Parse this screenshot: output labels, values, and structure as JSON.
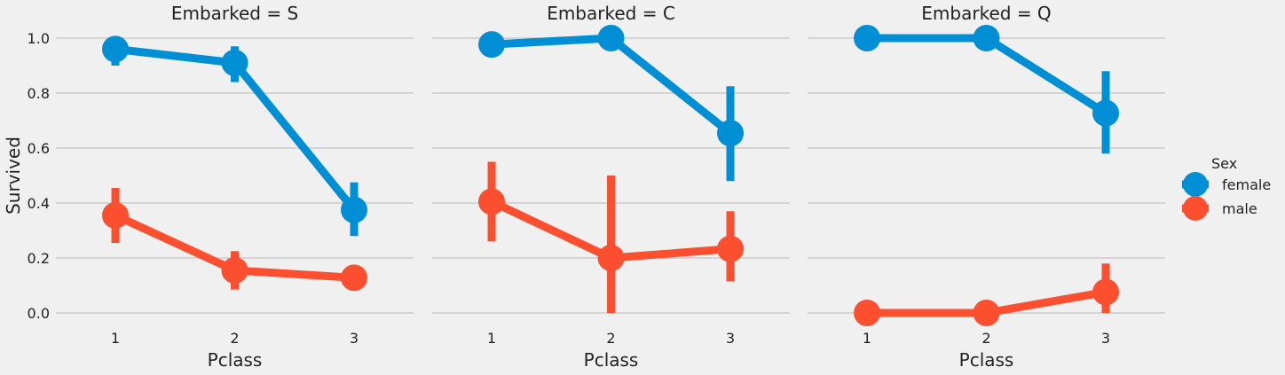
{
  "chart_data": {
    "type": "line",
    "subtype": "pointplot-with-error-bars",
    "x": [
      "1",
      "2",
      "3"
    ],
    "xlabel": "Pclass",
    "ylabel": "Survived",
    "ylim": [
      0.0,
      1.0
    ],
    "yticks": [
      "0.0",
      "0.2",
      "0.4",
      "0.6",
      "0.8",
      "1.0"
    ],
    "grid": "horizontal",
    "legend": {
      "title": "Sex",
      "placement": "right",
      "entries": [
        "female",
        "male"
      ]
    },
    "colors": {
      "female": "#008fd5",
      "male": "#fc4f30",
      "background": "#f0f0f0",
      "grid": "#cbcbcb"
    },
    "facets": [
      {
        "title": "Embarked = S",
        "series": [
          {
            "name": "female",
            "values": [
              0.96,
              0.91,
              0.375
            ],
            "ci_low": [
              0.9,
              0.84,
              0.28
            ],
            "ci_high": [
              1.0,
              0.97,
              0.475
            ]
          },
          {
            "name": "male",
            "values": [
              0.355,
              0.155,
              0.128
            ],
            "ci_low": [
              0.255,
              0.085,
              0.128
            ],
            "ci_high": [
              0.455,
              0.225,
              0.128
            ]
          }
        ]
      },
      {
        "title": "Embarked = C",
        "series": [
          {
            "name": "female",
            "values": [
              0.977,
              1.0,
              0.654
            ],
            "ci_low": [
              0.977,
              1.0,
              0.48
            ],
            "ci_high": [
              0.977,
              1.0,
              0.825
            ]
          },
          {
            "name": "male",
            "values": [
              0.405,
              0.2,
              0.233
            ],
            "ci_low": [
              0.26,
              0.0,
              0.115
            ],
            "ci_high": [
              0.55,
              0.5,
              0.37
            ]
          }
        ]
      },
      {
        "title": "Embarked = Q",
        "series": [
          {
            "name": "female",
            "values": [
              1.0,
              1.0,
              0.727
            ],
            "ci_low": [
              1.0,
              1.0,
              0.58
            ],
            "ci_high": [
              1.0,
              1.0,
              0.88
            ]
          },
          {
            "name": "male",
            "values": [
              0.0,
              0.0,
              0.076
            ],
            "ci_low": [
              0.0,
              0.0,
              0.0
            ],
            "ci_high": [
              0.0,
              0.0,
              0.18
            ]
          }
        ]
      }
    ]
  }
}
